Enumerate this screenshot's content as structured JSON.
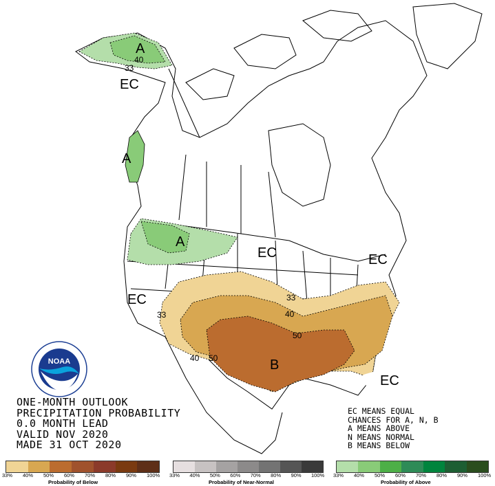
{
  "outlook": {
    "lines": [
      "ONE-MONTH OUTLOOK",
      "PRECIPITATION PROBABILITY",
      "0.0 MONTH LEAD",
      "VALID NOV 2020",
      "MADE 31 OCT 2020"
    ]
  },
  "key": {
    "lines": [
      "EC MEANS EQUAL",
      "CHANCES FOR A, N, B",
      "A MEANS ABOVE",
      "N MEANS NORMAL",
      "B MEANS BELOW"
    ]
  },
  "map_labels": {
    "alaska_ec": "EC",
    "alaska_a": "A",
    "pnw_coast_a": "A",
    "northwest_a": "A",
    "north_central_ec": "EC",
    "northeast_ec": "EC",
    "west_ec": "EC",
    "south_b": "B",
    "florida_ec": "EC"
  },
  "contour_labels": {
    "alaska_40": "40",
    "alaska_33": "33",
    "southeast_33": "33",
    "southwest_33": "33",
    "southeast_40": "40",
    "southeast_50": "50",
    "texas_40": "40",
    "texas_50": "50"
  },
  "legend": {
    "below": {
      "title": "Probability of Below",
      "ticks": [
        "33%",
        "40%",
        "50%",
        "60%",
        "70%",
        "80%",
        "90%",
        "100%"
      ],
      "colors": [
        "#f0d495",
        "#d8a751",
        "#bb6c2f",
        "#a0522d",
        "#8b3a2a",
        "#7a3a10",
        "#5e2f18"
      ]
    },
    "normal": {
      "title": "Probability of Near-Normal",
      "ticks": [
        "33%",
        "40%",
        "50%",
        "60%",
        "70%",
        "80%",
        "90%",
        "100%"
      ],
      "colors": [
        "#e6dfe0",
        "#c7c2c2",
        "#a5a2a2",
        "#8c8a8a",
        "#737373",
        "#555555",
        "#3a3a3a"
      ]
    },
    "above": {
      "title": "Probability of Above",
      "ticks": [
        "33%",
        "40%",
        "50%",
        "60%",
        "70%",
        "80%",
        "90%",
        "100%"
      ],
      "colors": [
        "#b4deaa",
        "#89cb78",
        "#4daf47",
        "#2e8b57",
        "#00843d",
        "#1d5e33",
        "#2a4d1e"
      ]
    }
  },
  "logo": {
    "text": "NOAA"
  }
}
